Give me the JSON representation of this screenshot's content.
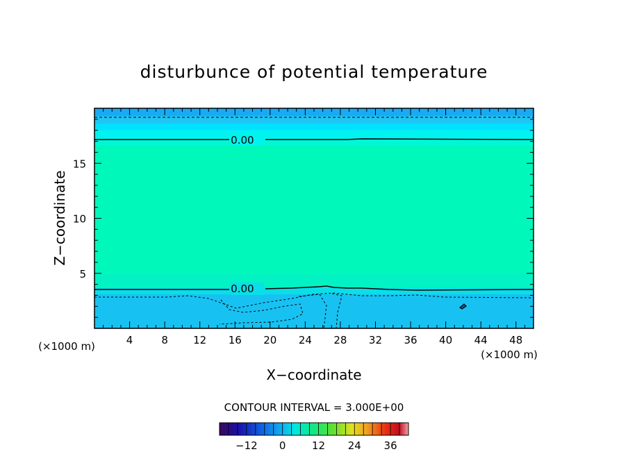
{
  "chart_data": {
    "type": "heatmap",
    "title": "disturbunce of potential temperature",
    "xlabel": "X−coordinate",
    "ylabel": "Z−coordinate",
    "x_unit_left": "(×1000 m)",
    "x_unit_right": "(×1000 m)",
    "xlim": [
      0,
      50
    ],
    "ylim": [
      0,
      20
    ],
    "x_ticks": [
      4,
      8,
      12,
      16,
      20,
      24,
      28,
      32,
      36,
      40,
      44,
      48
    ],
    "y_ticks": [
      5,
      10,
      15
    ],
    "contour_interval_text": "CONTOUR INTERVAL = 3.000E+00",
    "contour_labels": [
      {
        "text": "0.00",
        "x": 17,
        "z": 17.1
      },
      {
        "text": "0.00",
        "x": 17,
        "z": 3.6
      }
    ],
    "field_bands": [
      {
        "z0": 19.3,
        "z1": 20.0,
        "color": "#19aaf5"
      },
      {
        "z0": 18.6,
        "z1": 19.3,
        "color": "#1fc6f4"
      },
      {
        "z0": 18.0,
        "z1": 18.6,
        "color": "#00e2ff"
      },
      {
        "z0": 17.2,
        "z1": 18.0,
        "color": "#00f3ee"
      },
      {
        "z0": 16.6,
        "z1": 17.2,
        "color": "#00f7d6"
      },
      {
        "z0": 5.0,
        "z1": 16.6,
        "color": "#00f8bb"
      },
      {
        "z0": 3.7,
        "z1": 5.0,
        "color": "#02f2c4"
      },
      {
        "z0": 3.1,
        "z1": 3.7,
        "color": "#0adfe7"
      },
      {
        "z0": 0.0,
        "z1": 3.1,
        "color": "#17c2f2"
      }
    ],
    "colorbar": {
      "range": [
        -21,
        42
      ],
      "ticks": [
        -12,
        0,
        12,
        24,
        36
      ],
      "tick_labels": [
        "−12",
        "0",
        "12",
        "24",
        "36"
      ]
    }
  }
}
